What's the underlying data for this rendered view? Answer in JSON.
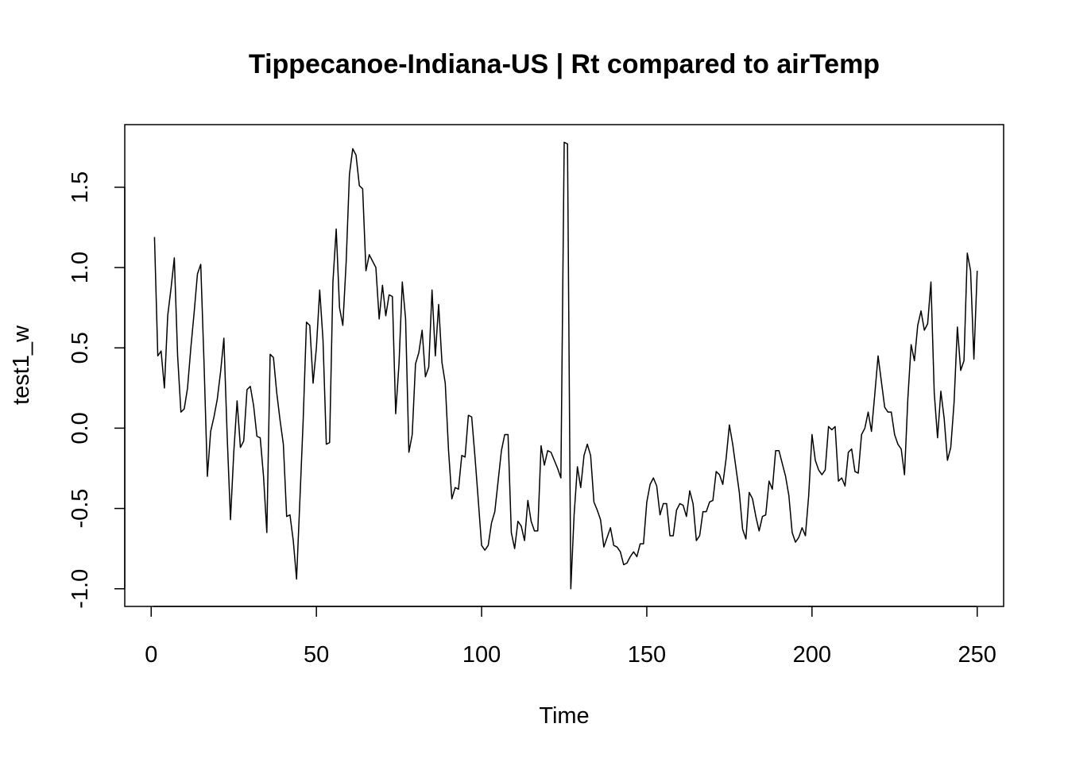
{
  "chart_data": {
    "type": "line",
    "title": "Tippecanoe-Indiana-US | Rt compared to airTemp",
    "xlabel": "Time",
    "ylabel": "test1_w",
    "xlim": [
      -8,
      258
    ],
    "ylim": [
      -1.11,
      1.89
    ],
    "x_ticks": [
      0,
      50,
      100,
      150,
      200,
      250
    ],
    "y_ticks": [
      -1.0,
      -0.5,
      0.0,
      0.5,
      1.0,
      1.5
    ],
    "x_tick_labels": [
      "0",
      "50",
      "100",
      "150",
      "200",
      "250"
    ],
    "y_tick_labels": [
      "-1.0",
      "-0.5",
      "0.0",
      "0.5",
      "1.0",
      "1.5"
    ],
    "grid": false,
    "series": [
      {
        "x_start": 1,
        "values": [
          1.19,
          0.45,
          0.48,
          0.25,
          0.7,
          0.87,
          1.06,
          0.45,
          0.1,
          0.12,
          0.25,
          0.5,
          0.72,
          0.96,
          1.02,
          0.4,
          -0.3,
          -0.02,
          0.07,
          0.18,
          0.35,
          0.56,
          -0.05,
          -0.57,
          -0.15,
          0.17,
          -0.12,
          -0.08,
          0.24,
          0.26,
          0.14,
          -0.05,
          -0.06,
          -0.3,
          -0.65,
          0.46,
          0.44,
          0.22,
          0.05,
          -0.1,
          -0.55,
          -0.54,
          -0.7,
          -0.94,
          -0.45,
          0.05,
          0.66,
          0.64,
          0.28,
          0.5,
          0.86,
          0.55,
          -0.1,
          -0.09,
          0.91,
          1.24,
          0.75,
          0.64,
          1.03,
          1.58,
          1.74,
          1.7,
          1.51,
          1.49,
          0.98,
          1.08,
          1.04,
          1.0,
          0.68,
          0.89,
          0.7,
          0.83,
          0.82,
          0.09,
          0.4,
          0.91,
          0.68,
          -0.15,
          -0.04,
          0.4,
          0.47,
          0.61,
          0.32,
          0.38,
          0.86,
          0.45,
          0.77,
          0.41,
          0.28,
          -0.14,
          -0.44,
          -0.37,
          -0.38,
          -0.17,
          -0.18,
          0.08,
          0.07,
          -0.18,
          -0.45,
          -0.73,
          -0.76,
          -0.73,
          -0.59,
          -0.52,
          -0.33,
          -0.14,
          -0.04,
          -0.04,
          -0.65,
          -0.75,
          -0.58,
          -0.61,
          -0.7,
          -0.45,
          -0.58,
          -0.64,
          -0.64,
          -0.11,
          -0.23,
          -0.14,
          -0.15,
          -0.2,
          -0.25,
          -0.31,
          1.78,
          1.77,
          -1.0,
          -0.54,
          -0.24,
          -0.37,
          -0.17,
          -0.1,
          -0.17,
          -0.46,
          -0.51,
          -0.57,
          -0.74,
          -0.68,
          -0.62,
          -0.73,
          -0.74,
          -0.77,
          -0.85,
          -0.84,
          -0.8,
          -0.77,
          -0.8,
          -0.72,
          -0.72,
          -0.46,
          -0.35,
          -0.31,
          -0.36,
          -0.54,
          -0.47,
          -0.47,
          -0.67,
          -0.67,
          -0.51,
          -0.47,
          -0.48,
          -0.55,
          -0.39,
          -0.47,
          -0.7,
          -0.67,
          -0.52,
          -0.52,
          -0.46,
          -0.45,
          -0.27,
          -0.29,
          -0.35,
          -0.19,
          0.02,
          -0.1,
          -0.25,
          -0.4,
          -0.63,
          -0.69,
          -0.4,
          -0.44,
          -0.55,
          -0.64,
          -0.55,
          -0.54,
          -0.33,
          -0.38,
          -0.14,
          -0.14,
          -0.22,
          -0.3,
          -0.42,
          -0.65,
          -0.71,
          -0.68,
          -0.62,
          -0.67,
          -0.42,
          -0.04,
          -0.2,
          -0.26,
          -0.29,
          -0.26,
          0.01,
          -0.01,
          0.01,
          -0.33,
          -0.31,
          -0.36,
          -0.15,
          -0.13,
          -0.27,
          -0.28,
          -0.04,
          0.0,
          0.1,
          -0.02,
          0.21,
          0.45,
          0.29,
          0.13,
          0.1,
          0.1,
          -0.04,
          -0.1,
          -0.13,
          -0.29,
          0.18,
          0.52,
          0.42,
          0.64,
          0.73,
          0.61,
          0.65,
          0.91,
          0.22,
          -0.06,
          0.23,
          0.06,
          -0.2,
          -0.12,
          0.16,
          0.63,
          0.36,
          0.42,
          1.09,
          0.98,
          0.43,
          0.98
        ]
      }
    ]
  }
}
